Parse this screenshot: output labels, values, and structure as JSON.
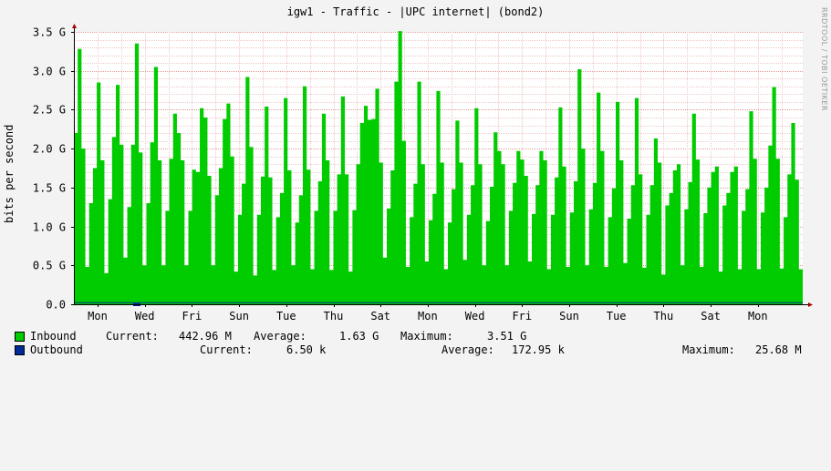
{
  "chart_data": {
    "type": "area",
    "title": "igw1 - Traffic - |UPC internet| (bond2)",
    "ylabel": "bits per second",
    "ylim": [
      0,
      3.5
    ],
    "y_unit": "G",
    "y_ticks": [
      "0.0",
      "0.5 G",
      "1.0 G",
      "1.5 G",
      "2.0 G",
      "2.5 G",
      "3.0 G",
      "3.5 G"
    ],
    "x_ticks": [
      "Mon",
      "Wed",
      "Fri",
      "Sun",
      "Tue",
      "Thu",
      "Sat",
      "Mon",
      "Wed",
      "Fri",
      "Sun",
      "Tue",
      "Thu",
      "Sat",
      "Mon"
    ],
    "grid": true,
    "series": [
      {
        "name": "Inbound",
        "color": "#00cc00",
        "values": [
          2.2,
          3.28,
          2.0,
          0.48,
          1.3,
          1.75,
          2.85,
          1.85,
          0.4,
          1.35,
          2.15,
          2.82,
          2.05,
          0.6,
          1.25,
          2.05,
          3.35,
          1.95,
          0.5,
          1.3,
          2.08,
          3.05,
          1.85,
          0.5,
          1.2,
          1.87,
          2.45,
          2.2,
          1.85,
          0.5,
          1.2,
          1.73,
          1.7,
          2.52,
          2.4,
          1.65,
          0.5,
          1.4,
          1.75,
          2.38,
          2.58,
          1.9,
          0.42,
          1.15,
          1.55,
          2.92,
          2.02,
          0.37,
          1.15,
          1.64,
          2.54,
          1.63,
          0.44,
          1.12,
          1.43,
          2.65,
          1.72,
          0.5,
          1.05,
          1.4,
          2.8,
          1.73,
          0.45,
          1.2,
          1.58,
          2.45,
          1.85,
          0.44,
          1.2,
          1.67,
          2.67,
          1.67,
          0.42,
          1.21,
          1.8,
          2.33,
          2.55,
          2.37,
          2.38,
          2.77,
          1.82,
          0.6,
          1.23,
          1.72,
          2.86,
          3.51,
          2.1,
          0.48,
          1.12,
          1.55,
          2.86,
          1.8,
          0.55,
          1.08,
          1.42,
          2.74,
          1.82,
          0.45,
          1.05,
          1.48,
          2.36,
          1.82,
          0.57,
          1.15,
          1.53,
          2.52,
          1.8,
          0.5,
          1.07,
          1.51,
          2.21,
          1.97,
          1.8,
          0.5,
          1.2,
          1.56,
          1.97,
          1.86,
          1.65,
          0.55,
          1.16,
          1.53,
          1.97,
          1.85,
          0.45,
          1.15,
          1.63,
          2.53,
          1.77,
          0.48,
          1.18,
          1.58,
          3.02,
          2.0,
          0.5,
          1.22,
          1.56,
          2.72,
          1.97,
          0.48,
          1.12,
          1.49,
          2.6,
          1.85,
          0.53,
          1.1,
          1.53,
          2.65,
          1.67,
          0.47,
          1.15,
          1.53,
          2.13,
          1.82,
          0.38,
          1.27,
          1.43,
          1.72,
          1.8,
          0.5,
          1.22,
          1.57,
          2.45,
          1.86,
          0.48,
          1.17,
          1.5,
          1.7,
          1.77,
          0.42,
          1.27,
          1.43,
          1.7,
          1.77,
          0.45,
          1.2,
          1.48,
          2.48,
          1.87,
          0.45,
          1.18,
          1.5,
          2.04,
          2.79,
          1.87,
          0.46,
          1.12,
          1.67,
          2.33,
          1.6,
          0.45
        ]
      },
      {
        "name": "Outbound",
        "color": "#002a97",
        "values": [
          0.02
        ]
      }
    ]
  },
  "legend": {
    "inbound": {
      "label": "Inbound",
      "current_label": "Current:",
      "current": "442.96 M",
      "average_label": "Average:",
      "average": "1.63 G",
      "maximum_label": "Maximum:",
      "maximum": "3.51 G"
    },
    "outbound": {
      "label": "Outbound",
      "current_label": "Current:",
      "current": "6.50 k",
      "average_label": "Average:",
      "average": "172.95 k",
      "maximum_label": "Maximum:",
      "maximum": "25.68 M"
    }
  },
  "credit": "RRDTOOL / TOBI OETIKER"
}
